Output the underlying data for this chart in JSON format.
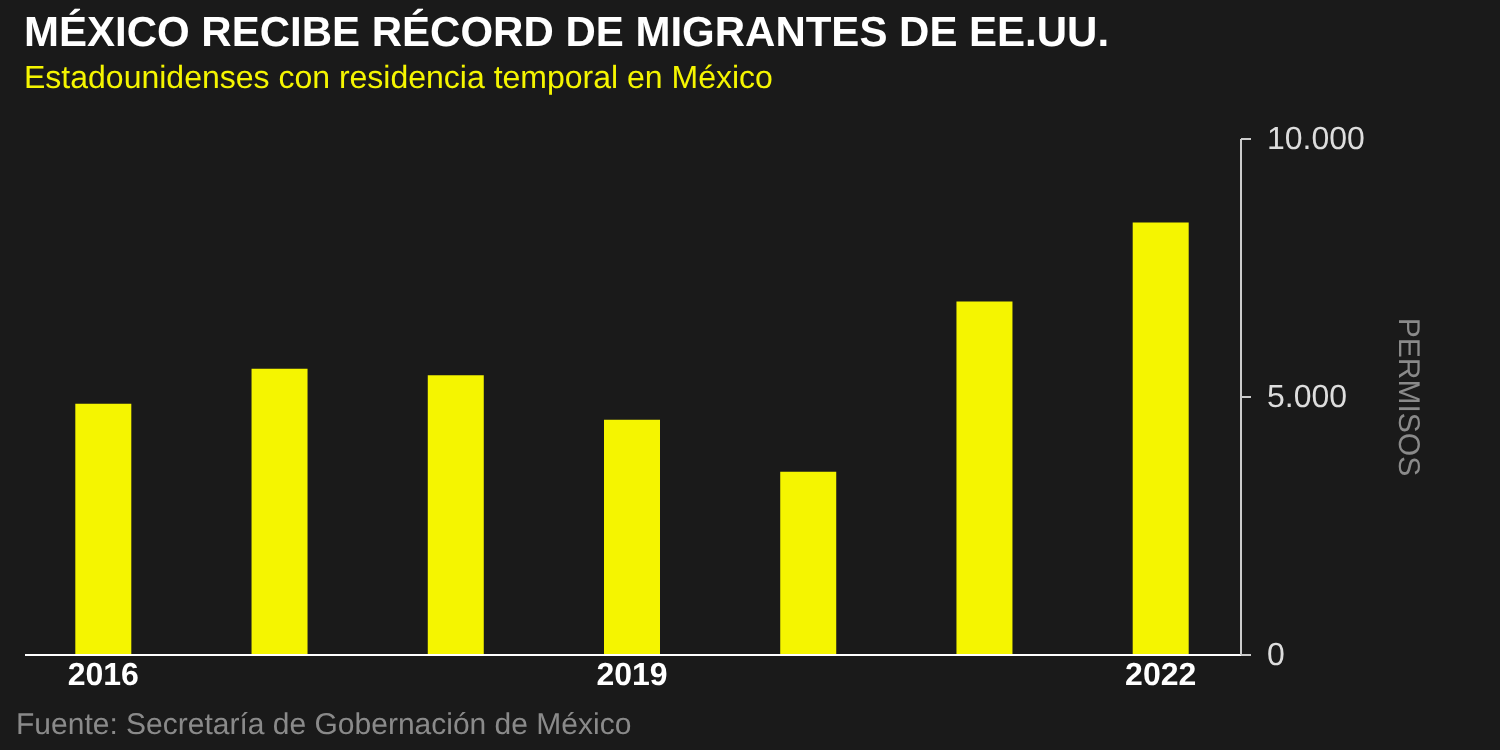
{
  "chart_data": {
    "type": "bar",
    "title": "MÉXICO RECIBE RÉCORD DE MIGRANTES DE EE.UU.",
    "subtitle": "Estadounidenses con residencia temporal en México",
    "ylabel": "PERMISOS",
    "categories": [
      "2016",
      null,
      null,
      "2019",
      null,
      null,
      "2022"
    ],
    "values": [
      4850,
      5530,
      5400,
      4540,
      3530,
      6830,
      8360
    ],
    "color": "#f5f500",
    "ylim": [
      0,
      10000
    ],
    "yticks": [
      {
        "value": 0,
        "label": "0"
      },
      {
        "value": 5000,
        "label": "5.000"
      },
      {
        "value": 10000,
        "label": "10.000"
      }
    ],
    "grid": false,
    "annotations": [
      "Fuente: Secretaría de Gobernación de México"
    ]
  }
}
